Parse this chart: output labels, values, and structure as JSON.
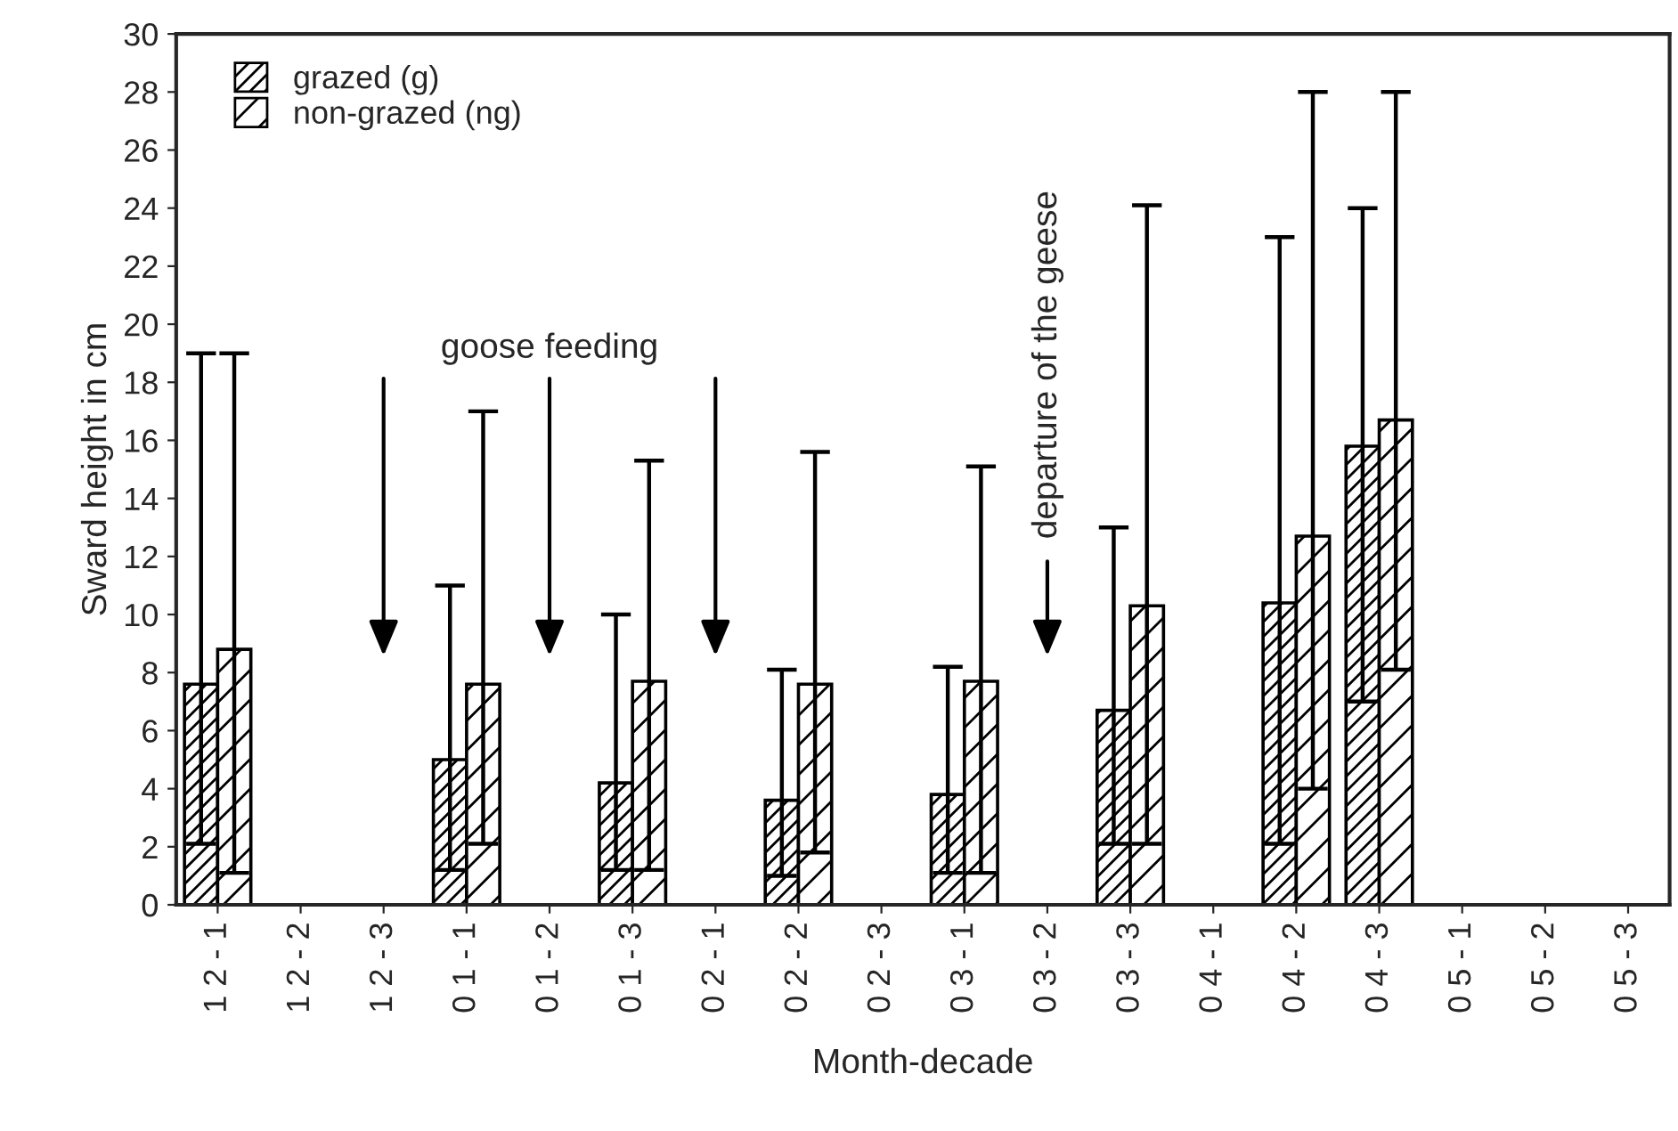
{
  "chart_data": {
    "type": "bar",
    "categories": [
      "1 2 - 1",
      "1 2 - 2",
      "1 2 - 3",
      "0 1 - 1",
      "0 1 - 2",
      "0 1 - 3",
      "0 2 - 1",
      "0 2 - 2",
      "0 2 - 3",
      "0 3 - 1",
      "0 3 - 2",
      "0 3 - 3",
      "0 4 - 1",
      "0 4 - 2",
      "0 4 - 3",
      "0 5 - 1",
      "0 5 - 2",
      "0 5 - 3"
    ],
    "xlabel": "Month-decade",
    "ylabel": "Sward height in cm",
    "ylim": [
      0,
      30
    ],
    "yticks": [
      0,
      2,
      4,
      6,
      8,
      10,
      12,
      14,
      16,
      18,
      20,
      22,
      24,
      26,
      28,
      30
    ],
    "series": [
      {
        "name": "grazed (g)",
        "color": "#000000",
        "values": [
          7.6,
          null,
          null,
          5.0,
          null,
          4.2,
          null,
          3.6,
          null,
          3.8,
          null,
          6.7,
          null,
          10.4,
          15.8,
          null,
          null,
          null
        ],
        "errors": [
          [
            2.1,
            19
          ],
          null,
          null,
          [
            1.2,
            11
          ],
          null,
          [
            1.2,
            10
          ],
          null,
          [
            1.0,
            8.1
          ],
          null,
          [
            1.1,
            8.2
          ],
          null,
          [
            2.1,
            13
          ],
          null,
          [
            2.1,
            23
          ],
          [
            7.0,
            24
          ],
          null,
          null,
          null
        ]
      },
      {
        "name": "non-grazed (ng)",
        "color": "#000000",
        "values": [
          8.8,
          null,
          null,
          7.6,
          null,
          7.7,
          null,
          7.6,
          null,
          7.7,
          null,
          10.3,
          null,
          12.7,
          16.7,
          null,
          null,
          null
        ],
        "errors": [
          [
            1.1,
            19
          ],
          null,
          null,
          [
            2.1,
            17
          ],
          null,
          [
            1.2,
            15.3
          ],
          null,
          [
            1.8,
            15.6
          ],
          null,
          [
            1.1,
            15.1
          ],
          null,
          [
            2.1,
            24.1
          ],
          null,
          [
            4.0,
            28
          ],
          [
            8.1,
            28
          ],
          null,
          null,
          null
        ]
      }
    ],
    "annotations": [
      "goose feeding",
      "departure of the geese"
    ],
    "legend": "top left",
    "grid": false
  }
}
